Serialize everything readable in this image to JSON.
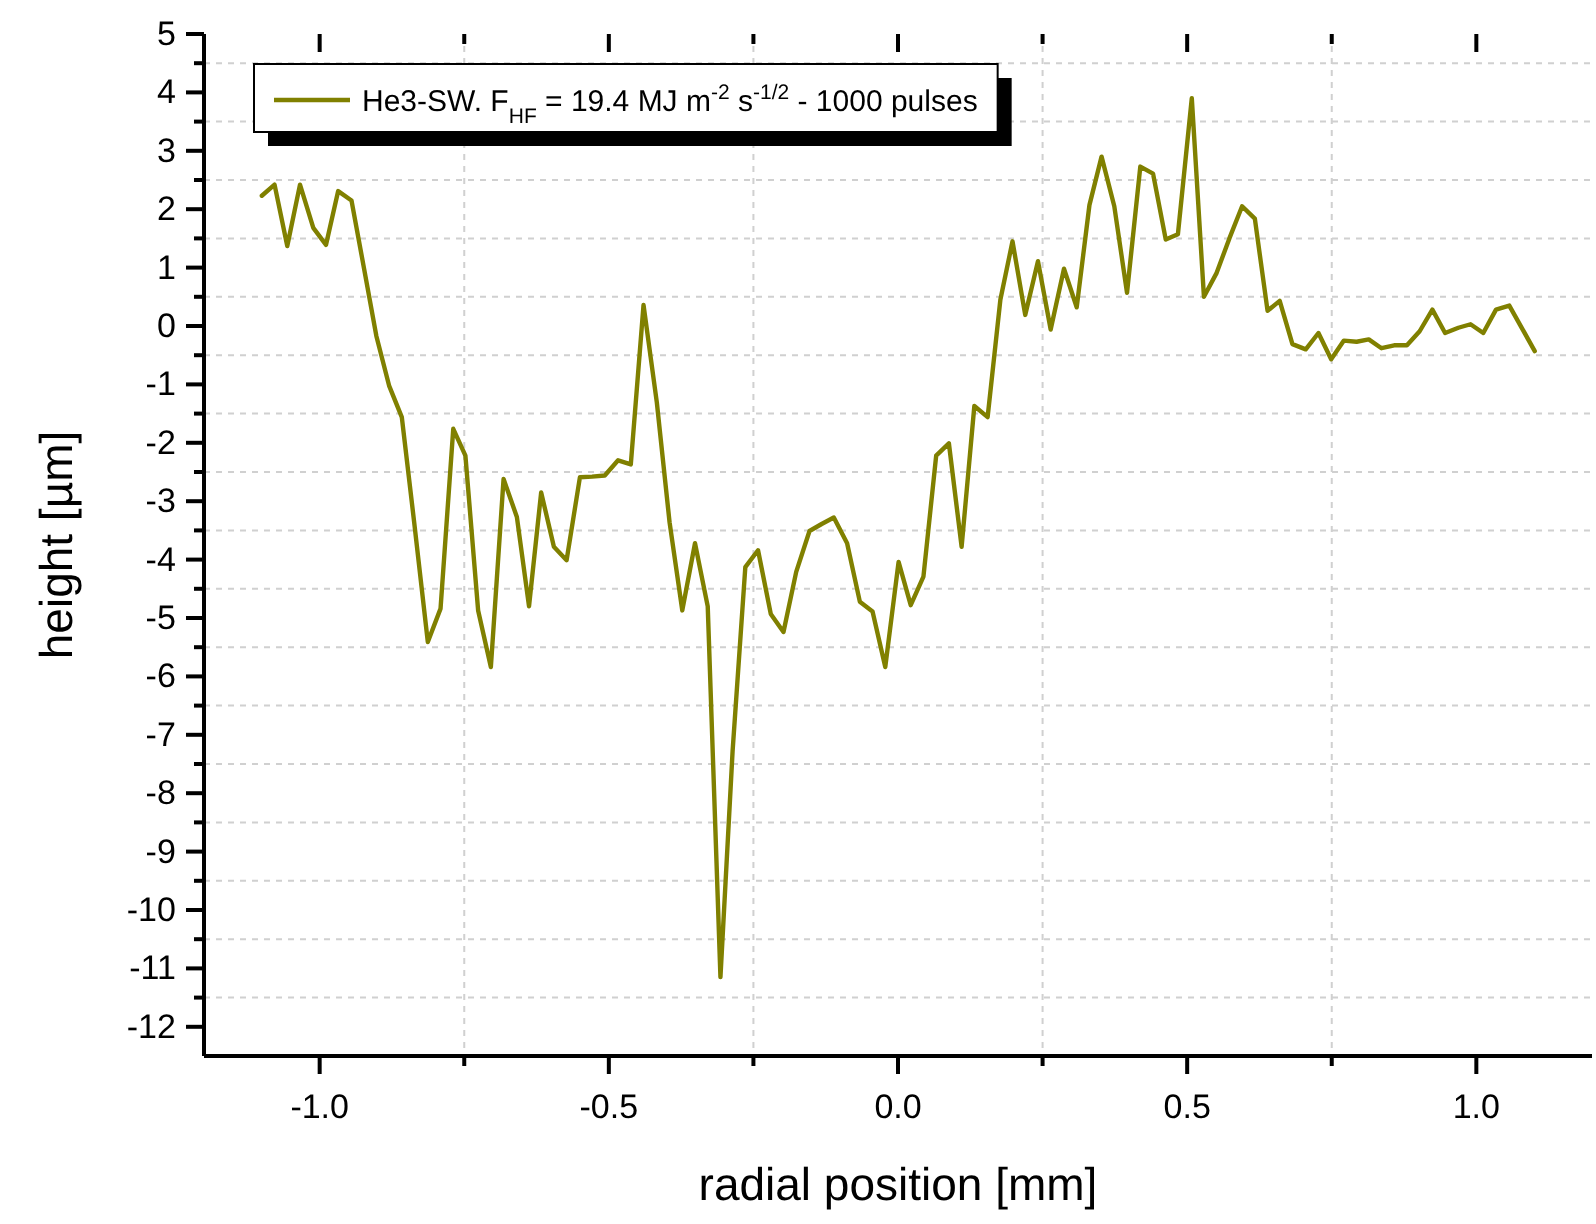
{
  "chart_data": {
    "type": "line",
    "xlabel": "radial position [mm]",
    "ylabel": "height [µm]",
    "xlim": [
      -1.2,
      1.2
    ],
    "ylim": [
      -12.5,
      5
    ],
    "xticks": [
      {
        "value": -1,
        "label": "-1.0"
      },
      {
        "value": -0.75,
        "label": null
      },
      {
        "value": -0.5,
        "label": "-0.5"
      },
      {
        "value": -0.25,
        "label": null
      },
      {
        "value": 0,
        "label": "0.0"
      },
      {
        "value": 0.25,
        "label": null
      },
      {
        "value": 0.5,
        "label": "0.5"
      },
      {
        "value": 0.75,
        "label": null
      },
      {
        "value": 1,
        "label": "1.0"
      }
    ],
    "yticks": [
      -12,
      {
        "value": -11.5,
        "label": null
      },
      -11,
      {
        "value": -10.5,
        "label": null
      },
      -10,
      {
        "value": -9.5,
        "label": null
      },
      -9,
      {
        "value": -8.5,
        "label": null
      },
      -8,
      {
        "value": -7.5,
        "label": null
      },
      -7,
      {
        "value": -6.5,
        "label": null
      },
      -6,
      {
        "value": -5.5,
        "label": null
      },
      -5,
      {
        "value": -4.5,
        "label": null
      },
      -4,
      {
        "value": -3.5,
        "label": null
      },
      -3,
      {
        "value": -2.5,
        "label": null
      },
      -2,
      {
        "value": -1.5,
        "label": null
      },
      -1,
      {
        "value": -0.5,
        "label": null
      },
      0,
      {
        "value": 0.5,
        "label": null
      },
      1,
      {
        "value": 1.5,
        "label": null
      },
      2,
      {
        "value": 2.5,
        "label": null
      },
      3,
      {
        "value": 3.5,
        "label": null
      },
      4,
      {
        "value": 4.5,
        "label": null
      },
      5
    ],
    "grid": true,
    "legend": "top left",
    "marker": "none",
    "line_style": "solid",
    "series": [
      {
        "name": "He3-SW. F$_{HF}$ = 19.4 MJ m$^{-2}$ s$^{-1/2}$ - 1000 pulses",
        "color": "#808000",
        "x": [
          -1.1,
          -1.078,
          -1.056,
          -1.034,
          -1.011,
          -0.989,
          -0.968,
          -0.945,
          -0.923,
          -0.902,
          -0.88,
          -0.858,
          -0.836,
          -0.813,
          -0.791,
          -0.769,
          -0.748,
          -0.726,
          -0.704,
          -0.682,
          -0.659,
          -0.638,
          -0.617,
          -0.595,
          -0.573,
          -0.55,
          -0.529,
          -0.507,
          -0.484,
          -0.462,
          -0.44,
          -0.417,
          -0.395,
          -0.373,
          -0.351,
          -0.329,
          -0.307,
          -0.286,
          -0.264,
          -0.242,
          -0.22,
          -0.198,
          -0.176,
          -0.153,
          -0.132,
          -0.111,
          -0.088,
          -0.066,
          -0.044,
          -0.022,
          0.001,
          0.022,
          0.044,
          0.066,
          0.088,
          0.11,
          0.132,
          0.155,
          0.177,
          0.198,
          0.22,
          0.242,
          0.264,
          0.287,
          0.309,
          0.331,
          0.352,
          0.374,
          0.396,
          0.419,
          0.441,
          0.463,
          0.484,
          0.508,
          0.529,
          0.551,
          0.573,
          0.595,
          0.617,
          0.639,
          0.66,
          0.682,
          0.705,
          0.727,
          0.749,
          0.771,
          0.793,
          0.814,
          0.836,
          0.858,
          0.88,
          0.902,
          0.924,
          0.946,
          0.969,
          0.99,
          1.012,
          1.034,
          1.057,
          1.079,
          1.101
        ],
        "values": [
          2.23,
          2.42,
          1.37,
          2.42,
          1.68,
          1.39,
          2.31,
          2.15,
          0.97,
          -0.17,
          -1.02,
          -1.56,
          -3.41,
          -5.41,
          -4.84,
          -1.76,
          -2.22,
          -4.87,
          -5.84,
          -2.62,
          -3.27,
          -4.8,
          -2.85,
          -3.78,
          -4.01,
          -2.59,
          -2.58,
          -2.56,
          -2.3,
          -2.37,
          0.36,
          -1.31,
          -3.36,
          -4.87,
          -3.72,
          -4.8,
          -11.15,
          -7.28,
          -4.13,
          -3.84,
          -4.93,
          -5.24,
          -4.21,
          -3.51,
          -3.39,
          -3.28,
          -3.72,
          -4.72,
          -4.89,
          -5.84,
          -4.04,
          -4.78,
          -4.29,
          -2.22,
          -2.01,
          -3.78,
          -1.37,
          -1.56,
          0.45,
          1.45,
          0.19,
          1.11,
          -0.06,
          0.98,
          0.32,
          2.07,
          2.9,
          2.05,
          0.57,
          2.73,
          2.61,
          1.48,
          1.57,
          3.9,
          0.5,
          0.91,
          1.5,
          2.05,
          1.84,
          0.26,
          0.43,
          -0.31,
          -0.4,
          -0.12,
          -0.57,
          -0.25,
          -0.27,
          -0.23,
          -0.38,
          -0.33,
          -0.33,
          -0.09,
          0.28,
          -0.12,
          -0.03,
          0.03,
          -0.12,
          0.28,
          0.35,
          -0.04,
          -0.43
        ]
      }
    ]
  }
}
